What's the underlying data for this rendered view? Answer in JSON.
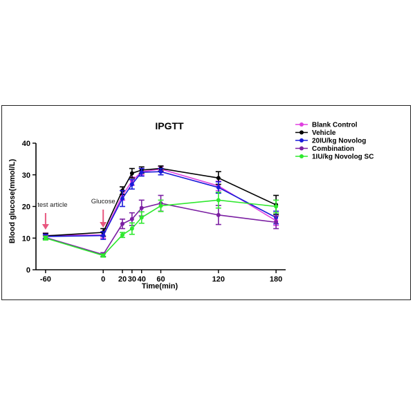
{
  "chart_data": {
    "type": "line",
    "title": "IPGTT",
    "xlabel": "Time(min)",
    "ylabel": "Blood glucose(mmol/L)",
    "xlim": [
      -70,
      190
    ],
    "ylim": [
      0,
      40
    ],
    "x_ticks": [
      -60,
      0,
      20,
      30,
      40,
      60,
      120,
      180
    ],
    "y_ticks": [
      0,
      10,
      20,
      30,
      40
    ],
    "legend_position": "right",
    "annotations": [
      {
        "text": "test article",
        "x": -60
      },
      {
        "text": "Glucose",
        "x": 0
      }
    ],
    "series": [
      {
        "name": "Blank Control",
        "color": "#e040e0",
        "x": [
          -60,
          0,
          20,
          30,
          40,
          60,
          120,
          180
        ],
        "y": [
          10.8,
          11.0,
          23.5,
          28.0,
          31.0,
          31.8,
          26.5,
          15.5
        ],
        "err": [
          0.8,
          1.0,
          1.5,
          1.3,
          1.0,
          0.8,
          1.5,
          1.5
        ]
      },
      {
        "name": "Vehicle",
        "color": "#000000",
        "x": [
          -60,
          0,
          20,
          30,
          40,
          60,
          120,
          180
        ],
        "y": [
          10.7,
          11.8,
          25.0,
          30.5,
          31.5,
          32.0,
          29.0,
          20.5
        ],
        "err": [
          0.8,
          1.2,
          1.2,
          1.5,
          1.0,
          0.8,
          2.0,
          3.0
        ]
      },
      {
        "name": "20IU/kg Novolog",
        "color": "#1a1ad9",
        "x": [
          -60,
          0,
          20,
          30,
          40,
          60,
          120,
          180
        ],
        "y": [
          10.5,
          10.8,
          22.5,
          27.0,
          30.8,
          31.0,
          26.0,
          16.5
        ],
        "err": [
          0.7,
          1.2,
          2.5,
          1.5,
          1.2,
          1.0,
          1.8,
          2.0
        ]
      },
      {
        "name": "Combination",
        "color": "#7b1fa2",
        "x": [
          -60,
          0,
          20,
          30,
          40,
          60,
          120,
          180
        ],
        "y": [
          10.2,
          4.8,
          14.5,
          16.0,
          19.5,
          21.0,
          17.3,
          15.0
        ],
        "err": [
          0.6,
          0.6,
          1.5,
          2.0,
          2.5,
          2.5,
          3.0,
          2.0
        ]
      },
      {
        "name": "1IU/kg Novolog SC",
        "color": "#2fe82f",
        "x": [
          -60,
          0,
          20,
          30,
          40,
          60,
          120,
          180
        ],
        "y": [
          10.0,
          4.5,
          11.0,
          13.0,
          16.5,
          20.2,
          22.0,
          20.0
        ],
        "err": [
          0.6,
          0.5,
          0.8,
          1.8,
          1.8,
          1.8,
          2.5,
          2.0
        ]
      }
    ]
  }
}
